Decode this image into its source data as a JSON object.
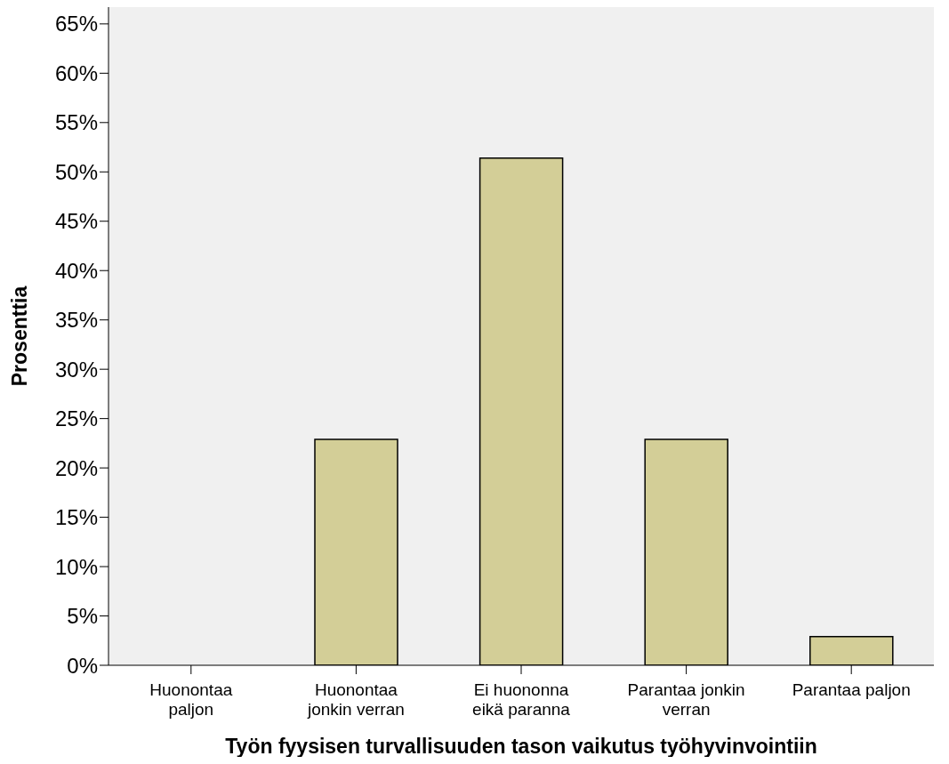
{
  "chart_data": {
    "type": "bar",
    "xlabel": "Työn fyysisen turvallisuuden tason vaikutus työhyvinvointiin",
    "ylabel": "Prosenttia",
    "categories": [
      "Huonontaa paljon",
      "Huonontaa jonkin verran",
      "Ei huononna eikä paranna",
      "Parantaa jonkin verran",
      "Parantaa paljon"
    ],
    "values": [
      0,
      22.9,
      51.4,
      22.9,
      2.9
    ],
    "color": "#d3ce97",
    "ylim": [
      0,
      66.7
    ],
    "yticks": [
      {
        "value": 0,
        "label": "0%"
      },
      {
        "value": 5,
        "label": "5%"
      },
      {
        "value": 10,
        "label": "10%"
      },
      {
        "value": 15,
        "label": "15%"
      },
      {
        "value": 20,
        "label": "20%"
      },
      {
        "value": 25,
        "label": "25%"
      },
      {
        "value": 30,
        "label": "30%"
      },
      {
        "value": 35,
        "label": "35%"
      },
      {
        "value": 40,
        "label": "40%"
      },
      {
        "value": 45,
        "label": "45%"
      },
      {
        "value": 50,
        "label": "50%"
      },
      {
        "value": 55,
        "label": "55%"
      },
      {
        "value": 60,
        "label": "60%"
      },
      {
        "value": 65,
        "label": "65%"
      }
    ],
    "grid": false,
    "legend": false
  }
}
